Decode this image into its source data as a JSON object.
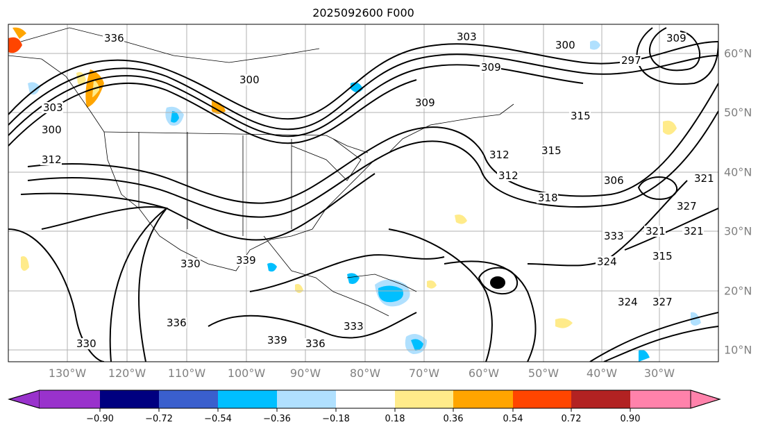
{
  "title": "2025092600 F000",
  "longitude_labels": [
    "130°W",
    "120°W",
    "110°W",
    "100°W",
    "90°W",
    "80°W",
    "70°W",
    "60°W",
    "50°W",
    "40°W",
    "30°W"
  ],
  "latitude_labels": [
    "60°N",
    "50°N",
    "40°N",
    "30°N",
    "20°N",
    "10°N"
  ],
  "colorbar": {
    "ticks": [
      "−0.90",
      "−0.72",
      "−0.54",
      "−0.36",
      "−0.18",
      "0.18",
      "0.36",
      "0.54",
      "0.72",
      "0.90"
    ],
    "colors": [
      "#9932cc",
      "#000080",
      "#3a5fcd",
      "#00bfff",
      "#b0e0fe",
      "#ffffff",
      "#ffeb8a",
      "#ffa500",
      "#ff4500",
      "#b22222",
      "#ff82ab"
    ]
  },
  "contour_labels": [
    "303",
    "300",
    "297",
    "309",
    "300",
    "303",
    "300",
    "309",
    "315",
    "315",
    "312",
    "318",
    "321",
    "327",
    "333",
    "324",
    "321",
    "315",
    "336",
    "339",
    "330",
    "339",
    "336",
    "333",
    "312",
    "327",
    "324",
    "321",
    "330",
    "336",
    "309",
    "312",
    "306"
  ]
}
